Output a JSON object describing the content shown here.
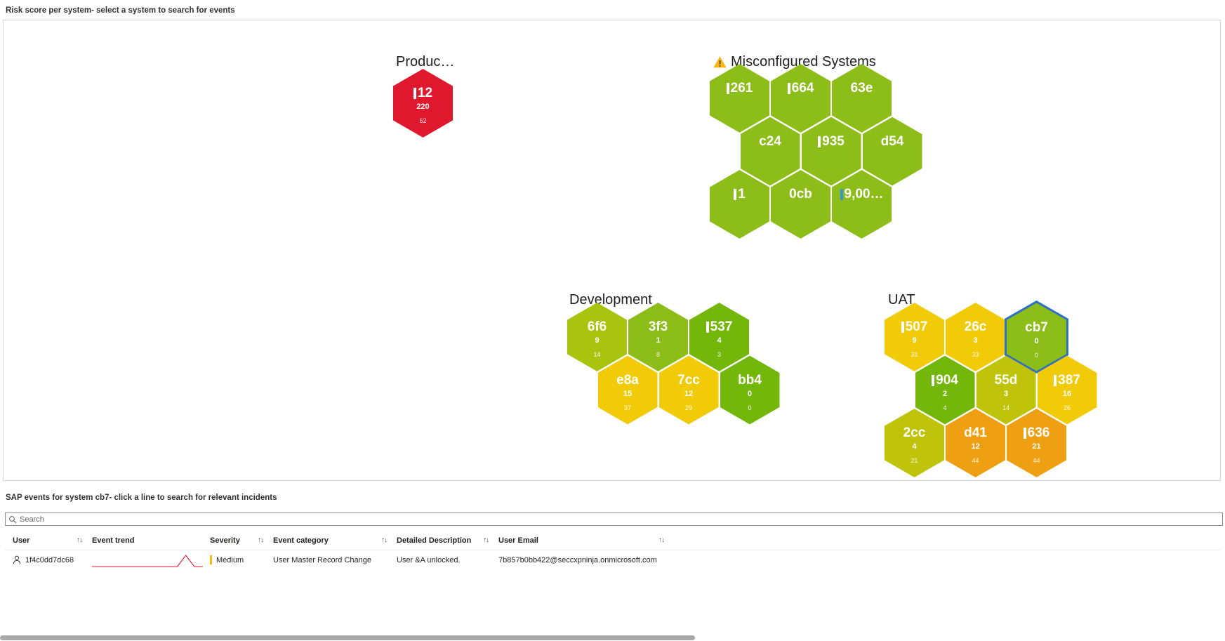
{
  "titles": {
    "risk_chart": "Risk score per system- select a system to search for events",
    "events_grid": "SAP events for system cb7- click a line to search for relevant incidents"
  },
  "search": {
    "placeholder": "Search"
  },
  "icons": {
    "sort": "↑↓"
  },
  "honeycomb": {
    "bar_colors": {
      "white": "#ffffff",
      "blue": "#3396d3"
    },
    "selected_outline": "#2f6fc4",
    "groups": [
      {
        "id": "production",
        "title": "Produc…",
        "warning": false,
        "rows": [
          [
            {
              "label": "12",
              "value": "220",
              "sub": "62",
              "color": "#e0182d",
              "bar": "white"
            }
          ]
        ]
      },
      {
        "id": "misconfigured",
        "title": "Misconfigured Systems",
        "warning": true,
        "rows": [
          [
            {
              "label": "261",
              "color": "#8cbd18",
              "bar": "white"
            },
            {
              "label": "664",
              "color": "#8cbd18",
              "bar": "white"
            },
            {
              "label": "63e",
              "color": "#8cbd18"
            }
          ],
          [
            {
              "label": "c24",
              "color": "#8cbd18"
            },
            {
              "label": "935",
              "color": "#8cbd18",
              "bar": "white"
            },
            {
              "label": "d54",
              "color": "#8cbd18"
            }
          ],
          [
            {
              "label": "1",
              "color": "#8cbd18",
              "bar": "white"
            },
            {
              "label": "0cb",
              "color": "#8cbd18"
            },
            {
              "label": "9,00…",
              "color": "#8cbd18",
              "bar": "blue"
            }
          ]
        ]
      },
      {
        "id": "development",
        "title": "Development",
        "warning": false,
        "rows": [
          [
            {
              "label": "6f6",
              "value": "9",
              "sub": "14",
              "color": "#a9c30e"
            },
            {
              "label": "3f3",
              "value": "1",
              "sub": "8",
              "color": "#8cbd18"
            },
            {
              "label": "537",
              "value": "4",
              "sub": "3",
              "color": "#74b70b",
              "bar": "white"
            }
          ],
          [
            {
              "label": "e8a",
              "value": "15",
              "sub": "37",
              "color": "#f1cb08"
            },
            {
              "label": "7cc",
              "value": "12",
              "sub": "29",
              "color": "#f1cb08"
            },
            {
              "label": "bb4",
              "value": "0",
              "sub": "0",
              "color": "#74b70b"
            }
          ]
        ]
      },
      {
        "id": "uat",
        "title": "UAT",
        "warning": false,
        "rows": [
          [
            {
              "label": "507",
              "value": "9",
              "sub": "31",
              "color": "#f1cb08",
              "bar": "white"
            },
            {
              "label": "26c",
              "value": "3",
              "sub": "33",
              "color": "#f1cb08"
            },
            {
              "label": "cb7",
              "value": "0",
              "sub": "0",
              "color": "#8cbd18",
              "selected": true
            }
          ],
          [
            {
              "label": "904",
              "value": "2",
              "sub": "4",
              "color": "#74b70b",
              "bar": "white"
            },
            {
              "label": "55d",
              "value": "3",
              "sub": "14",
              "color": "#bfc40a"
            },
            {
              "label": "387",
              "value": "16",
              "sub": "26",
              "color": "#f1cb08",
              "bar": "white"
            }
          ],
          [
            {
              "label": "2cc",
              "value": "4",
              "sub": "21",
              "color": "#bfc40a"
            },
            {
              "label": "d41",
              "value": "12",
              "sub": "44",
              "color": "#efa012"
            },
            {
              "label": "636",
              "value": "21",
              "sub": "44",
              "color": "#efa012",
              "bar": "white"
            }
          ]
        ]
      }
    ]
  },
  "table": {
    "columns": [
      {
        "label": "User",
        "sortable": true
      },
      {
        "label": "Event trend",
        "sortable": false
      },
      {
        "label": "Severity",
        "sortable": true
      },
      {
        "label": "Event category",
        "sortable": true
      },
      {
        "label": "Detailed Description",
        "sortable": true
      },
      {
        "label": "User Email",
        "sortable": true
      }
    ],
    "rows": [
      {
        "user": "1f4c0dd7dc68",
        "severity": "Medium",
        "severity_color": "#fdb913",
        "event_category": "User Master Record Change",
        "detailed_description": "User &A unlocked.",
        "user_email": "7b857b0bb422@seccxpninja.onmicrosoft.com",
        "spark": {
          "color": "#e8112d",
          "values": [
            0,
            0,
            0,
            0,
            0,
            0,
            0,
            0,
            0,
            0,
            0,
            8,
            0,
            0
          ]
        }
      }
    ]
  }
}
